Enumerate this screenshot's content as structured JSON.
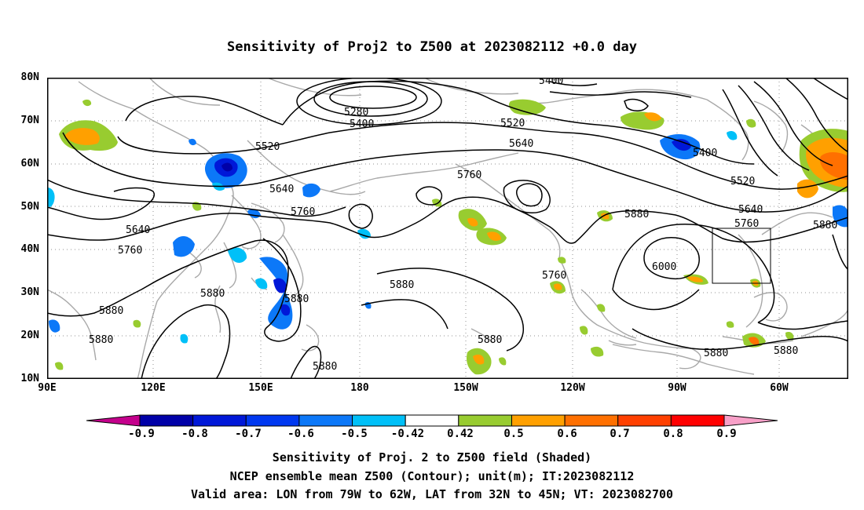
{
  "title": "Sensitivity of Proj2 to Z500 at 2023082112 +0.0 day",
  "lat_labels": [
    "80N",
    "70N",
    "60N",
    "50N",
    "40N",
    "30N",
    "20N",
    "10N"
  ],
  "lon_labels": [
    "90E",
    "120E",
    "150E",
    "180",
    "150W",
    "120W",
    "90W",
    "60W"
  ],
  "contour_labels": [
    "5400",
    "5280",
    "5400",
    "5520",
    "5520",
    "5640",
    "5760",
    "5640",
    "5400",
    "5520",
    "5640",
    "5760",
    "5760",
    "5880",
    "5880",
    "5640",
    "5760",
    "5880",
    "6000",
    "5760",
    "5880",
    "5880",
    "5880",
    "5880",
    "5880",
    "5880",
    "5880",
    "5880"
  ],
  "colorbar": {
    "labels": [
      "-0.9",
      "-0.8",
      "-0.7",
      "-0.6",
      "-0.5",
      "-0.42",
      "0.42",
      "0.5",
      "0.6",
      "0.7",
      "0.8",
      "0.9"
    ],
    "colors": [
      "#c4008c",
      "#0000a8",
      "#0018d8",
      "#0038f0",
      "#0c78f8",
      "#00c0f8",
      "#ffffff",
      "#98cc30",
      "#ffa000",
      "#ff7000",
      "#ff4000",
      "#ff0000",
      "#f8a0c8"
    ]
  },
  "caption": {
    "line1": "Sensitivity of Proj. 2 to Z500 field (Shaded)",
    "line2": "NCEP ensemble mean Z500 (Contour); unit(m); IT:2023082112",
    "line3": "Valid area: LON from 79W to 62W, LAT from 32N to 45N; VT: 2023082700"
  }
}
